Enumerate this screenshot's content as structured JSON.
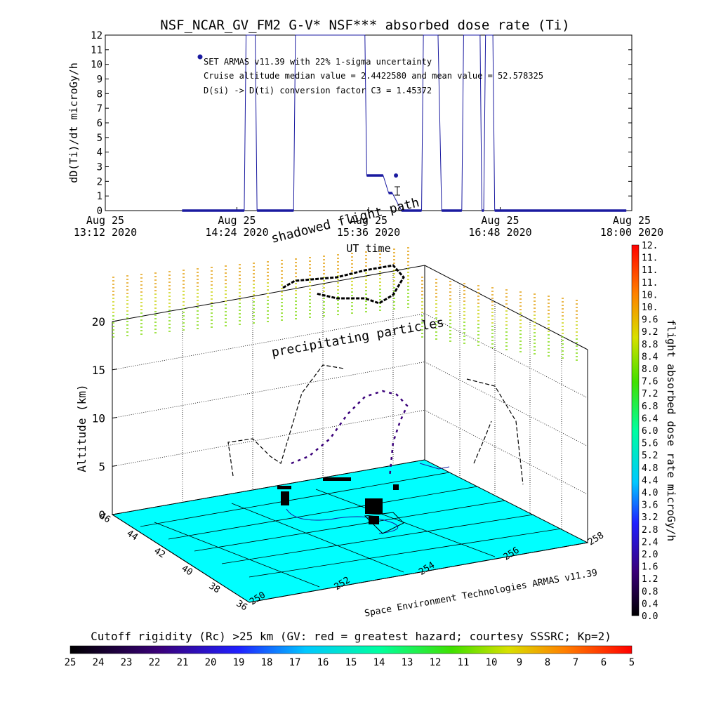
{
  "chart_data": [
    {
      "type": "line",
      "title": "NSF_NCAR_GV_FM2 G-V* NSF*** absorbed dose rate (Ti)",
      "xlabel": "UT time",
      "ylabel": "dD(Ti)/dt microGy/h",
      "ylim": [
        0,
        12
      ],
      "yticks": [
        "0",
        "1",
        "2",
        "3",
        "4",
        "5",
        "6",
        "7",
        "8",
        "9",
        "10",
        "11",
        "12"
      ],
      "xticks": [
        {
          "date": "Aug 25",
          "time": "13:12 2020"
        },
        {
          "date": "Aug 25",
          "time": "14:24 2020"
        },
        {
          "date": "Aug 25",
          "time": "15:36 2020"
        },
        {
          "date": "Aug 25",
          "time": "16:48 2020"
        },
        {
          "date": "Aug 25",
          "time": "18:00 2020"
        }
      ],
      "annotations": [
        "SET ARMAS v11.39 with 22% 1-sigma uncertainty",
        "Cruise altitude median value = 2.4422580 and mean value = 52.578325",
        "D(si) -> D(ti) conversion factor C3 = 1.45372"
      ],
      "series": [
        {
          "color": "#1a1aa0",
          "x": [
            "13:54",
            "14:28",
            "14:29",
            "14:34",
            "14:35",
            "14:55",
            "14:56",
            "15:34",
            "15:35",
            "15:44",
            "15:47",
            "15:49",
            "15:54",
            "16:05",
            "16:06",
            "16:14",
            "16:16",
            "16:27",
            "16:28",
            "16:37",
            "16:38",
            "16:39",
            "16:40",
            "16:44",
            "16:45",
            "17:57"
          ],
          "y": [
            0,
            0,
            12,
            12,
            0,
            0,
            12,
            12,
            2.4,
            2.4,
            1.2,
            1.2,
            0,
            0,
            12,
            12,
            0,
            0,
            12,
            12,
            0,
            0,
            12,
            12,
            0,
            0
          ]
        }
      ]
    },
    {
      "type": "scatter",
      "title": "",
      "zlabel": "Altitude (km)",
      "zticks": [
        "0",
        "5",
        "10",
        "15",
        "20"
      ],
      "lat_ticks": [
        "36",
        "38",
        "40",
        "42",
        "44",
        "46"
      ],
      "lon_ticks": [
        "250",
        "252",
        "254",
        "256",
        "258"
      ],
      "annotations": [
        "shadowed flight path",
        "precipitating particles"
      ],
      "credit": "Space Environment Technologies ARMAS v11.39",
      "colorbar": {
        "label": "flight absorbed dose rate microGy/h",
        "ticks": [
          "0.0",
          "0.4",
          "0.8",
          "1.2",
          "1.6",
          "2.0",
          "2.4",
          "2.8",
          "3.2",
          "3.6",
          "4.0",
          "4.4",
          "4.8",
          "5.2",
          "5.6",
          "6.0",
          "6.4",
          "6.8",
          "7.2",
          "7.6",
          "8.0",
          "8.4",
          "8.8",
          "9.2",
          "9.6",
          "10.",
          "10.",
          "11.",
          "11.",
          "11.",
          "12."
        ]
      }
    },
    {
      "type": "heatmap",
      "title": "Cutoff rigidity (Rc) >25 km (GV: red = greatest hazard; courtesy SSSRC; Kp=2)",
      "ticks": [
        "25",
        "24",
        "23",
        "22",
        "21",
        "20",
        "19",
        "18",
        "17",
        "16",
        "15",
        "14",
        "13",
        "12",
        "11",
        "10",
        "9",
        "8",
        "7",
        "6",
        "5"
      ]
    }
  ],
  "colors": {
    "surface": "#00ffff",
    "trace": "#1a1aa0",
    "bar_stops": [
      "#000000",
      "#3a007a",
      "#2020ff",
      "#00c8ff",
      "#00ffa0",
      "#40e000",
      "#d8e000",
      "#ff8000",
      "#ff0000"
    ]
  }
}
